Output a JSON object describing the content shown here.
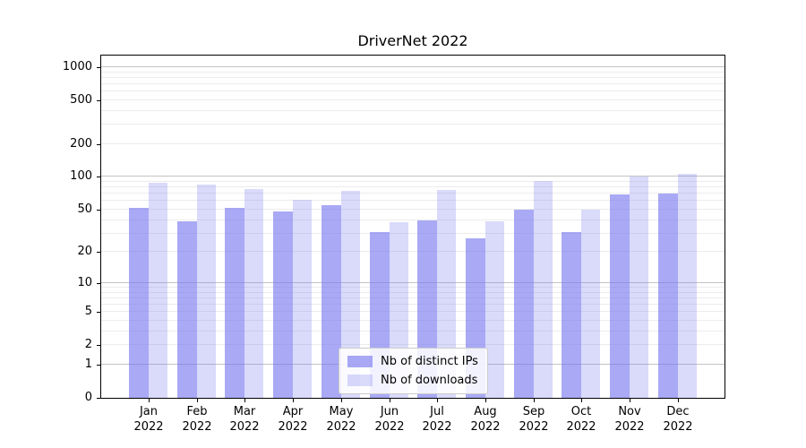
{
  "figure": {
    "title": "DriverNet 2022"
  },
  "chart_data": {
    "type": "bar",
    "title": "DriverNet 2022",
    "categories": [
      "Jan 2022",
      "Feb 2022",
      "Mar 2022",
      "Apr 2022",
      "May 2022",
      "Jun 2022",
      "Jul 2022",
      "Aug 2022",
      "Sep 2022",
      "Oct 2022",
      "Nov 2022",
      "Dec 2022"
    ],
    "series": [
      {
        "name": "Nb of distinct IPs",
        "color": "rgba(120,120,240,0.64)",
        "values": [
          52,
          39,
          52,
          48,
          55,
          31,
          40,
          27,
          50,
          31,
          69,
          71
        ]
      },
      {
        "name": "Nb of downloads",
        "color": "rgba(120,120,240,0.27)",
        "values": [
          89,
          85,
          78,
          62,
          74,
          38,
          76,
          39,
          92,
          50,
          100,
          107
        ]
      }
    ],
    "yscale": "log(1+y)",
    "y_ticks": [
      1000,
      500,
      200,
      100,
      50,
      20,
      10,
      5,
      2,
      1,
      0
    ],
    "ylim": [
      0,
      1250
    ],
    "xlabel": "",
    "ylabel": "",
    "grid": true,
    "legend_position": "lower center",
    "colors": {
      "major_grid": "#c3c3c3",
      "minor_grid": "#ececec",
      "axis": "#000000",
      "bar_base": "#7878f0"
    }
  }
}
